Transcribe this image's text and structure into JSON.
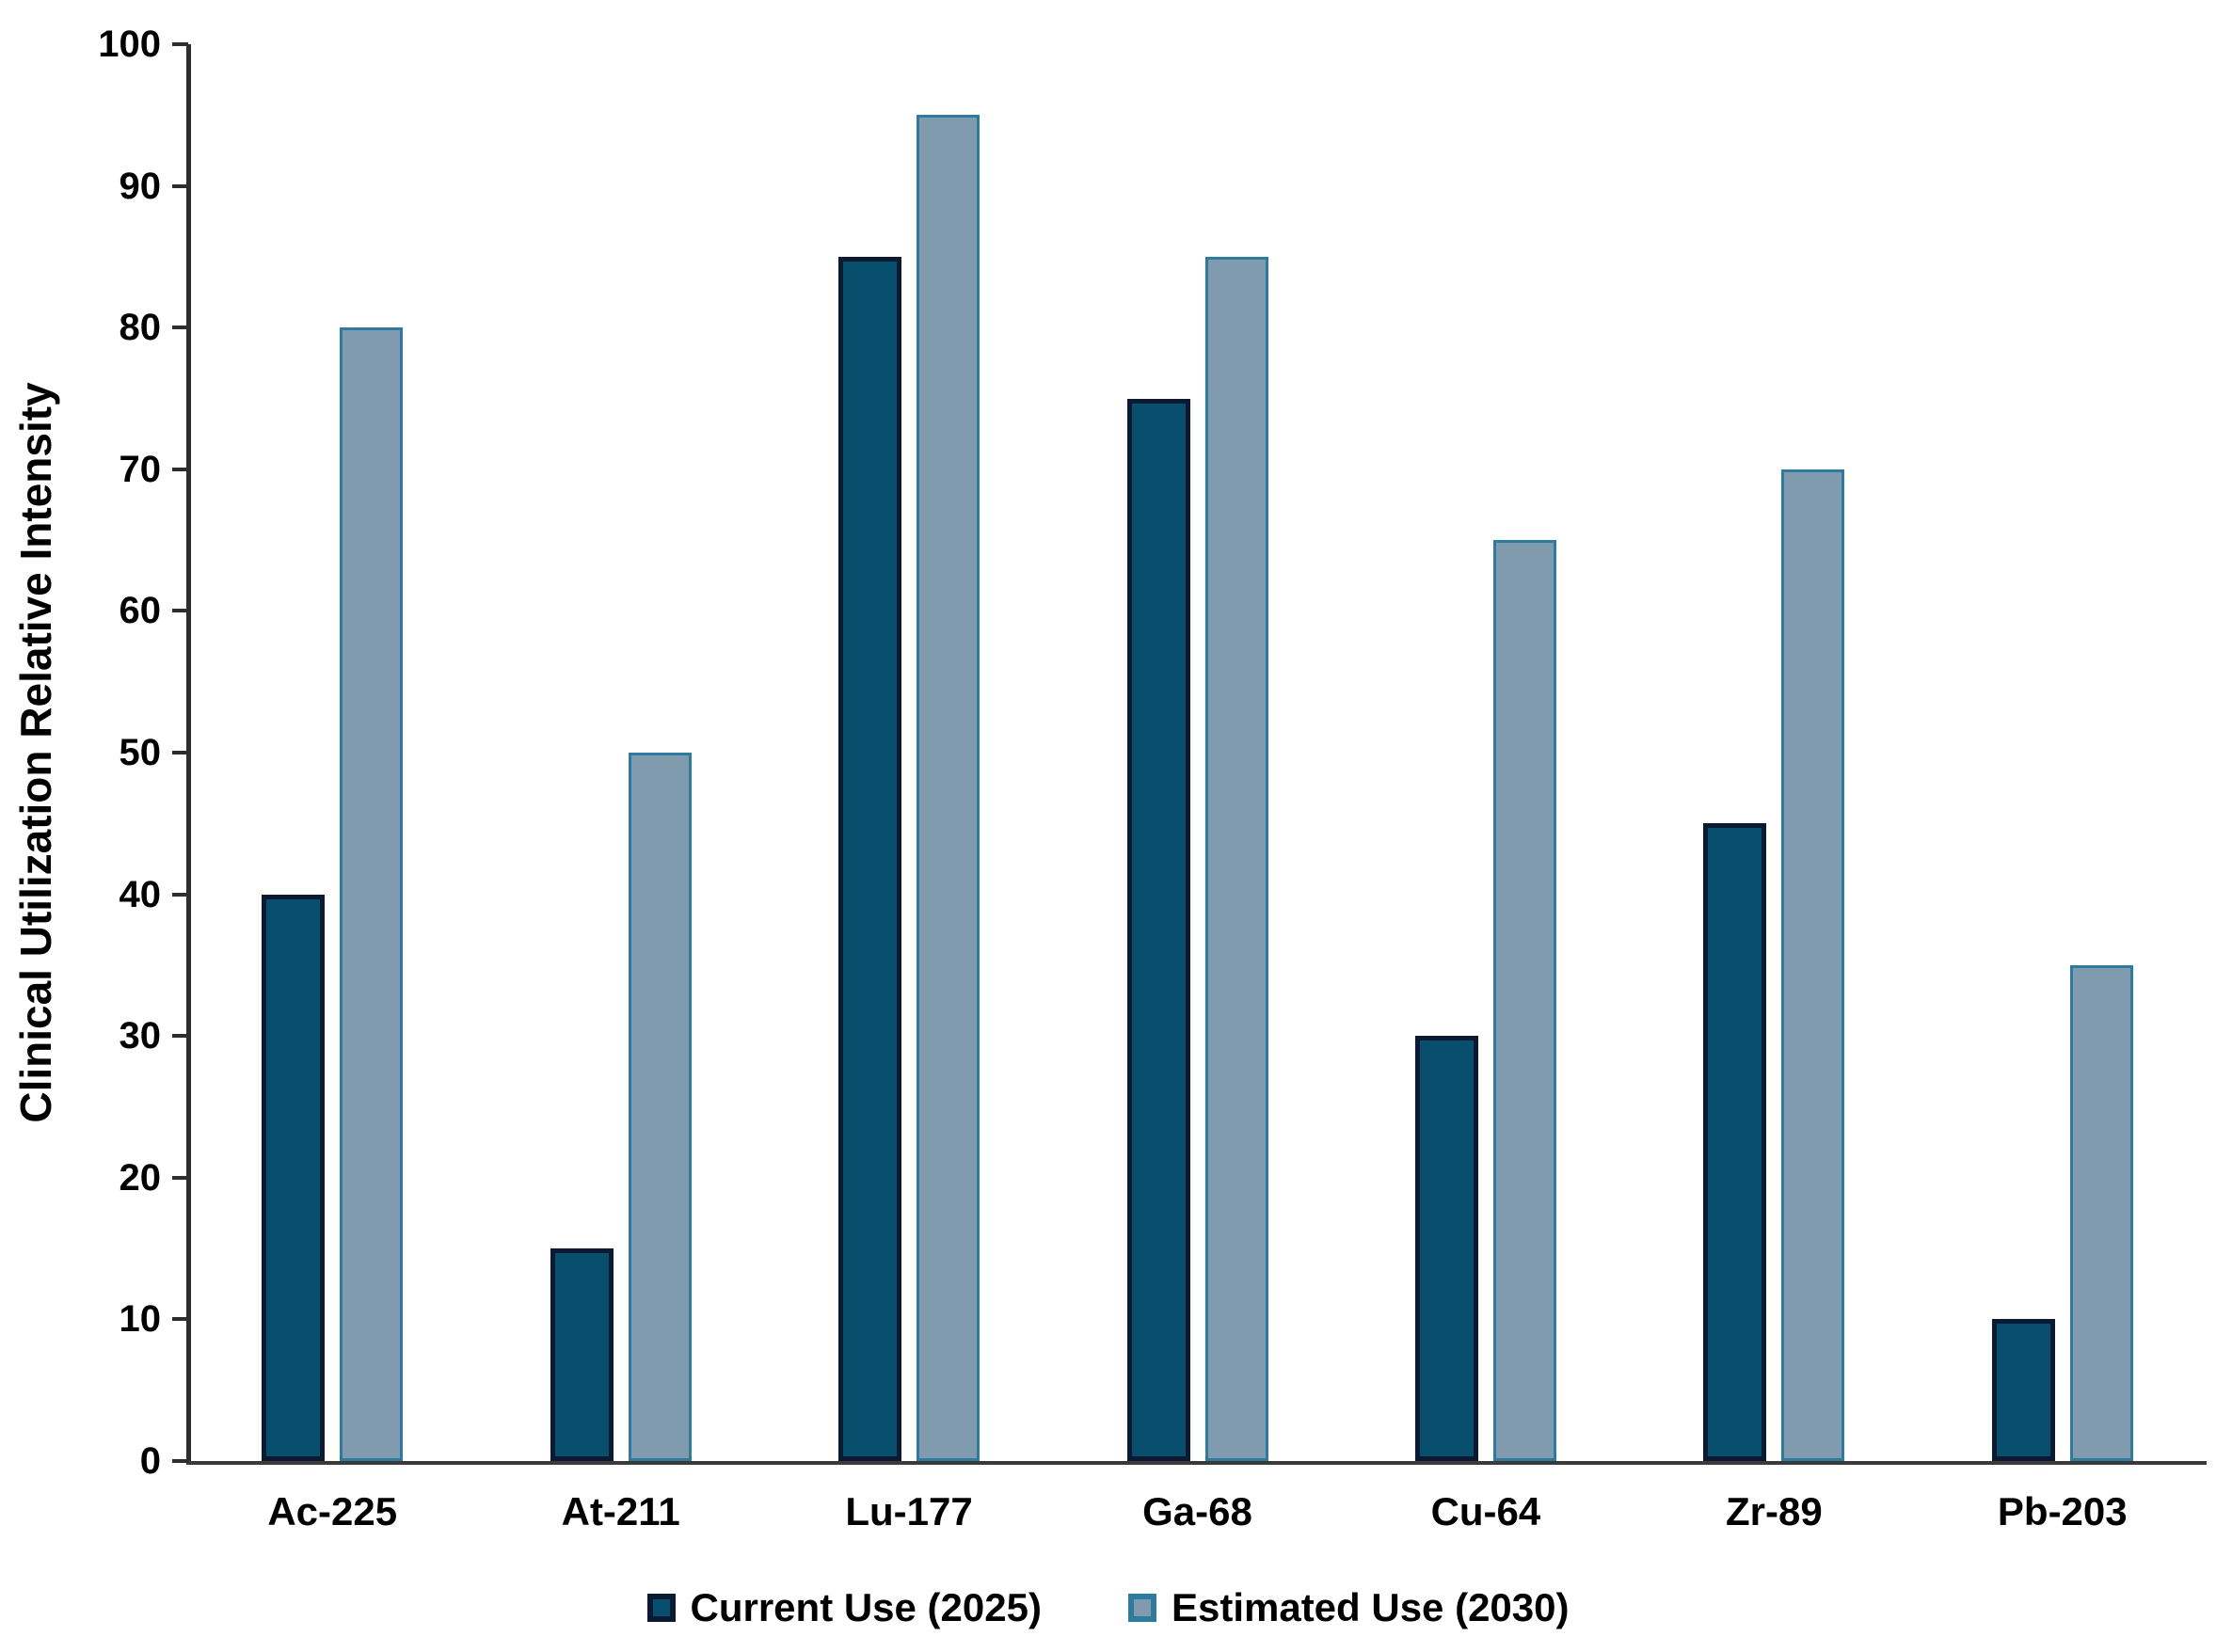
{
  "chart_data": {
    "type": "bar",
    "title": "",
    "categories": [
      "Ac-225",
      "At-211",
      "Lu-177",
      "Ga-68",
      "Cu-64",
      "Zr-89",
      "Pb-203"
    ],
    "series": [
      {
        "name": "Current Use (2025)",
        "values": [
          40,
          15,
          85,
          75,
          30,
          45,
          10
        ],
        "fill": "#084F6E",
        "border": "#0B1A33"
      },
      {
        "name": "Estimated Use (2030)",
        "values": [
          80,
          50,
          95,
          85,
          65,
          70,
          35
        ],
        "fill": "#7F9BAD",
        "border": "#2F7BA0"
      }
    ],
    "xlabel": "",
    "ylabel": "Clinical Utilization Relative Intensity",
    "ylim": [
      0,
      100
    ],
    "yticks": [
      0,
      10,
      20,
      30,
      40,
      50,
      60,
      70,
      80,
      90,
      100
    ],
    "grid": false,
    "legend_position": "bottom"
  },
  "colors": {
    "axis": "#2d2d2d",
    "baseline": "#3a3a3a",
    "text": "#000000",
    "background": "#ffffff"
  }
}
